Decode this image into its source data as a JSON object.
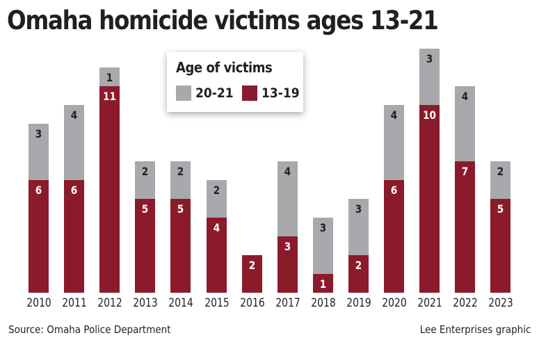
{
  "header": {
    "title": "Omaha homicide victims ages 13-21"
  },
  "legend": {
    "title": "Age of victims",
    "items": [
      {
        "label": "20-21",
        "color": "#a7a9ac"
      },
      {
        "label": "13-19",
        "color": "#8b1a2b"
      }
    ]
  },
  "footer": {
    "source": "Source: Omaha Police Department",
    "credit": "Lee Enterprises graphic"
  },
  "colors": {
    "age_13_19": "#8b1a2b",
    "age_20_21": "#a7a9ac",
    "text_dark": "#231f20",
    "text_light": "#ffffff"
  },
  "chart_data": {
    "type": "bar",
    "stacked": true,
    "title": "Omaha homicide victims ages 13-21",
    "xlabel": "",
    "ylabel": "",
    "categories": [
      "2010",
      "2011",
      "2012",
      "2013",
      "2014",
      "2015",
      "2016",
      "2017",
      "2018",
      "2019",
      "2020",
      "2021",
      "2022",
      "2023"
    ],
    "series": [
      {
        "name": "13-19",
        "color": "#8b1a2b",
        "values": [
          6,
          6,
          11,
          5,
          5,
          4,
          2,
          3,
          1,
          2,
          6,
          10,
          7,
          5
        ]
      },
      {
        "name": "20-21",
        "color": "#a7a9ac",
        "values": [
          3,
          4,
          1,
          2,
          2,
          2,
          0,
          4,
          3,
          3,
          4,
          3,
          4,
          2
        ]
      }
    ],
    "legend_title": "Age of victims",
    "legend_position": "top-center",
    "grid": false,
    "y_axis_visible": false,
    "data_labels": true,
    "source": "Source: Omaha Police Department",
    "credit": "Lee Enterprises graphic"
  }
}
